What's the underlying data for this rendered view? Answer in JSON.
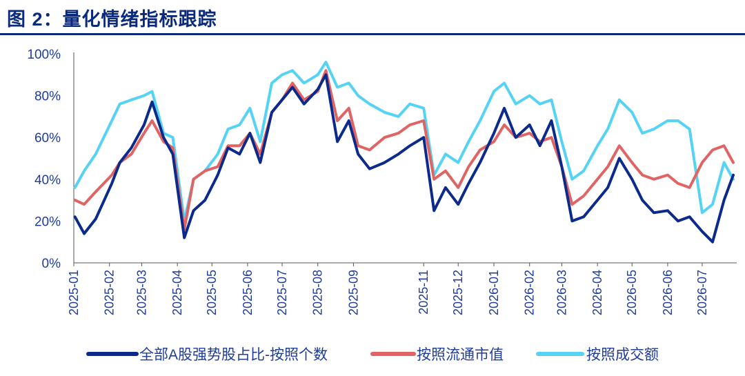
{
  "figure": {
    "title": "图 2：量化情绪指标跟踪"
  },
  "colors": {
    "title": "#0b2a7e",
    "series_count": "#0b2a8c",
    "series_float": "#e06464",
    "series_turnover": "#55d3f5",
    "axis_text": "#1f3c99"
  },
  "chart_data": {
    "type": "line",
    "xlabel": "",
    "ylabel": "",
    "ylim": [
      0,
      100
    ],
    "y_ticks": [
      "0%",
      "20%",
      "40%",
      "60%",
      "80%",
      "100%"
    ],
    "x_ticks": [
      "2025-01",
      "2025-02",
      "2025-03",
      "2025-04",
      "2025-05",
      "2025-06",
      "2025-07",
      "2025-08",
      "2025-09",
      "2025-11",
      "2025-12",
      "2026-01",
      "2026-02",
      "2026-03",
      "2026-04",
      "2026-05",
      "2026-06",
      "2026-07"
    ],
    "grid": false,
    "legend_position": "bottom",
    "x": [
      "2025-01-02",
      "2025-01-10",
      "2025-01-20",
      "2025-02-03",
      "2025-02-10",
      "2025-02-20",
      "2025-03-03",
      "2025-03-10",
      "2025-03-20",
      "2025-03-28",
      "2025-04-07",
      "2025-04-15",
      "2025-04-25",
      "2025-05-06",
      "2025-05-15",
      "2025-05-25",
      "2025-06-03",
      "2025-06-12",
      "2025-06-22",
      "2025-07-01",
      "2025-07-10",
      "2025-07-20",
      "2025-08-01",
      "2025-08-08",
      "2025-08-18",
      "2025-08-28",
      "2025-09-05",
      "2025-09-15",
      "2025-09-28",
      "2025-10-10",
      "2025-10-20",
      "2025-11-01",
      "2025-11-10",
      "2025-11-20",
      "2025-12-01",
      "2025-12-10",
      "2025-12-20",
      "2026-01-01",
      "2026-01-10",
      "2026-01-20",
      "2026-02-01",
      "2026-02-10",
      "2026-02-20",
      "2026-03-01",
      "2026-03-10",
      "2026-03-20",
      "2026-04-01",
      "2026-04-10",
      "2026-04-20",
      "2026-05-01",
      "2026-05-10",
      "2026-05-20",
      "2026-06-01",
      "2026-06-10",
      "2026-06-20",
      "2026-07-01",
      "2026-07-10",
      "2026-07-20",
      "2026-07-28"
    ],
    "series": [
      {
        "name": "全部A股强势股占比-按照个数",
        "values": [
          22,
          14,
          21,
          38,
          48,
          55,
          66,
          77,
          60,
          52,
          12,
          25,
          30,
          42,
          55,
          52,
          62,
          48,
          72,
          78,
          84,
          76,
          83,
          90,
          58,
          68,
          52,
          45,
          48,
          52,
          56,
          60,
          25,
          36,
          28,
          38,
          48,
          62,
          74,
          60,
          66,
          56,
          68,
          46,
          20,
          22,
          30,
          36,
          50,
          40,
          30,
          24,
          25,
          20,
          22,
          15,
          10,
          30,
          42
        ]
      },
      {
        "name": "按照流通市值",
        "values": [
          30,
          28,
          34,
          42,
          48,
          52,
          62,
          68,
          58,
          55,
          16,
          40,
          44,
          46,
          56,
          56,
          62,
          52,
          72,
          78,
          86,
          78,
          82,
          92,
          68,
          74,
          56,
          54,
          60,
          62,
          66,
          68,
          40,
          44,
          36,
          46,
          54,
          58,
          66,
          60,
          62,
          58,
          60,
          46,
          28,
          32,
          40,
          46,
          56,
          48,
          42,
          40,
          42,
          38,
          36,
          48,
          54,
          56,
          48
        ]
      },
      {
        "name": "按照成交额",
        "values": [
          36,
          44,
          52,
          68,
          76,
          78,
          80,
          82,
          62,
          60,
          20,
          40,
          44,
          52,
          64,
          66,
          74,
          58,
          86,
          90,
          92,
          86,
          90,
          96,
          84,
          86,
          80,
          76,
          72,
          70,
          76,
          74,
          42,
          52,
          48,
          58,
          68,
          82,
          86,
          76,
          80,
          76,
          78,
          58,
          40,
          44,
          56,
          64,
          78,
          72,
          62,
          64,
          68,
          68,
          64,
          24,
          28,
          48,
          40
        ]
      }
    ]
  }
}
